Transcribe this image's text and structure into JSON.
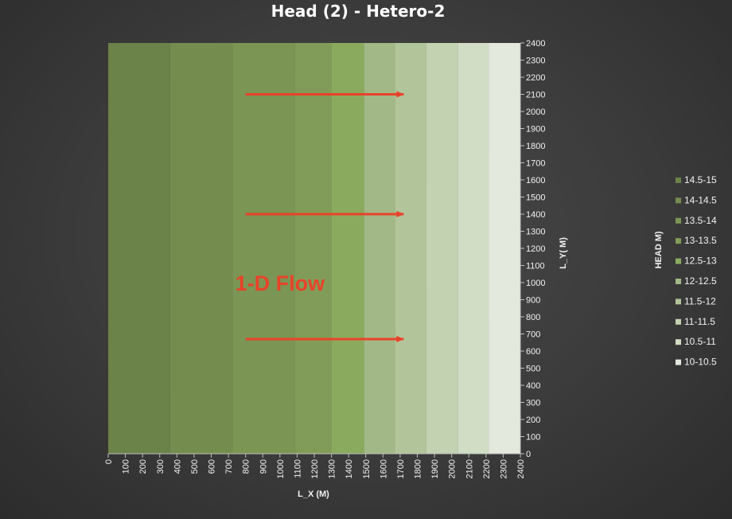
{
  "chart_data": {
    "type": "heatmap",
    "title": "Head (2) - Hetero-2",
    "xlabel": "L_X (M)",
    "ylabel": "L_Y( M)",
    "legend_title": "HEAD M)",
    "xlim": [
      0,
      2400
    ],
    "ylim": [
      0,
      2400
    ],
    "x_ticks": [
      0,
      100,
      200,
      300,
      400,
      500,
      600,
      700,
      800,
      900,
      1000,
      1100,
      1200,
      1300,
      1400,
      1500,
      1600,
      1700,
      1800,
      1900,
      2000,
      2100,
      2200,
      2300,
      2400
    ],
    "y_ticks": [
      0,
      100,
      200,
      300,
      400,
      500,
      600,
      700,
      800,
      900,
      1000,
      1100,
      1200,
      1300,
      1400,
      1500,
      1600,
      1700,
      1800,
      1900,
      2000,
      2100,
      2200,
      2300,
      2400
    ],
    "bands": [
      {
        "x_start": 0,
        "x_end": 360,
        "value_range": "14.5-15",
        "color": "#6b8249"
      },
      {
        "x_start": 360,
        "x_end": 725,
        "value_range": "14-14.5",
        "color": "#748d4f"
      },
      {
        "x_start": 725,
        "x_end": 1085,
        "value_range": "13.5-14",
        "color": "#7b9554"
      },
      {
        "x_start": 1085,
        "x_end": 1300,
        "value_range": "13-13.5",
        "color": "#819c58"
      },
      {
        "x_start": 1300,
        "x_end": 1490,
        "value_range": "12.5-13",
        "color": "#8aab5d"
      },
      {
        "x_start": 1490,
        "x_end": 1670,
        "value_range": "12-12.5",
        "color": "#a2b886"
      },
      {
        "x_start": 1670,
        "x_end": 1850,
        "value_range": "11.5-12",
        "color": "#b2c59a"
      },
      {
        "x_start": 1850,
        "x_end": 2035,
        "value_range": "11-11.5",
        "color": "#c3d2b1"
      },
      {
        "x_start": 2035,
        "x_end": 2215,
        "value_range": "10.5-11",
        "color": "#d2ddc5"
      },
      {
        "x_start": 2215,
        "x_end": 2400,
        "value_range": "10-10.5",
        "color": "#e3e9dc"
      }
    ],
    "legend": [
      {
        "label": "14.5-15",
        "color": "#6b8249"
      },
      {
        "label": "14-14.5",
        "color": "#748d4f"
      },
      {
        "label": "13.5-14",
        "color": "#7b9554"
      },
      {
        "label": "13-13.5",
        "color": "#819c58"
      },
      {
        "label": "12.5-13",
        "color": "#8aab5d"
      },
      {
        "label": "12-12.5",
        "color": "#a2b886"
      },
      {
        "label": "11.5-12",
        "color": "#b2c59a"
      },
      {
        "label": "11-11.5",
        "color": "#c3d2b1"
      },
      {
        "label": "10.5-11",
        "color": "#d2ddc5"
      },
      {
        "label": "10-10.5",
        "color": "#e3e9dc"
      }
    ],
    "annotations": {
      "text": "1-D Flow",
      "text_at": [
        1000,
        1000
      ],
      "text_color": "#e8432a",
      "arrows": [
        {
          "from": [
            800,
            2100
          ],
          "to": [
            1720,
            2100
          ]
        },
        {
          "from": [
            800,
            1400
          ],
          "to": [
            1720,
            1400
          ]
        },
        {
          "from": [
            800,
            670
          ],
          "to": [
            1720,
            670
          ]
        }
      ],
      "arrow_color": "#e8432a"
    },
    "grid": false,
    "legend_position": "right"
  }
}
